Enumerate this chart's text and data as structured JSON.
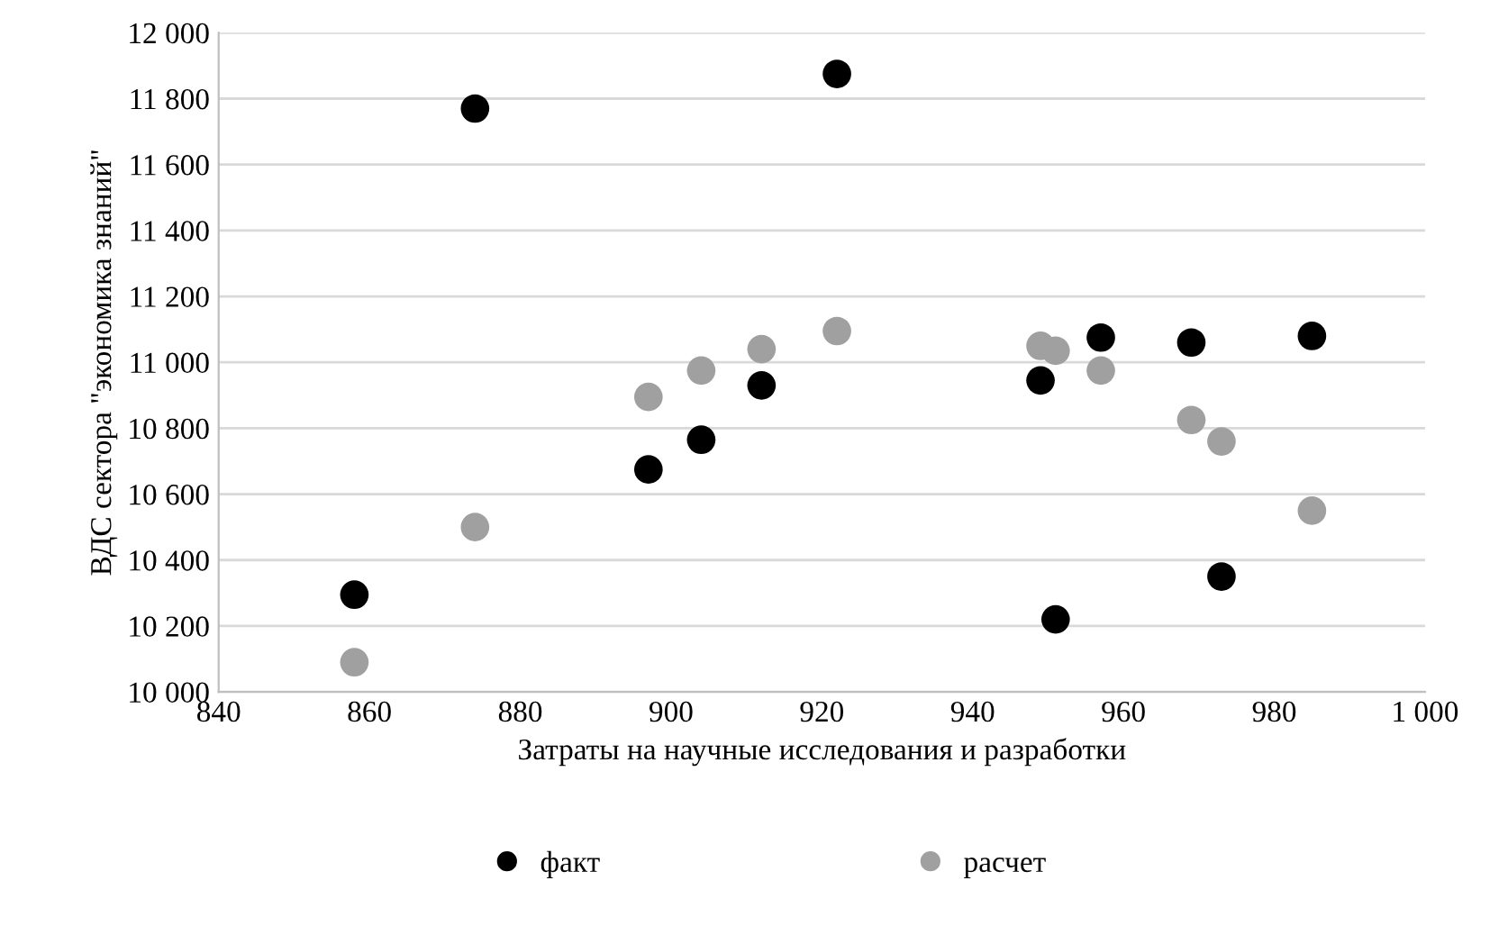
{
  "chart_data": {
    "type": "scatter",
    "xlabel": "Затраты на научные исследования и разработки",
    "ylabel": "ВДС сектора \"экономика знаний\"",
    "xlim": [
      840,
      1000
    ],
    "xticks": [
      840,
      860,
      880,
      900,
      920,
      940,
      960,
      980,
      {
        "value": 1000,
        "label": "1 000"
      }
    ],
    "ylim": [
      10000,
      12000
    ],
    "yticks": [
      {
        "value": 10000,
        "label": "10 000"
      },
      {
        "value": 10200,
        "label": "10 200"
      },
      {
        "value": 10400,
        "label": "10 400"
      },
      {
        "value": 10600,
        "label": "10 600"
      },
      {
        "value": 10800,
        "label": "10 800"
      },
      {
        "value": 11000,
        "label": "11 000"
      },
      {
        "value": 11200,
        "label": "11 200"
      },
      {
        "value": 11400,
        "label": "11 400"
      },
      {
        "value": 11600,
        "label": "11 600"
      },
      {
        "value": 11800,
        "label": "11 800"
      },
      {
        "value": 12000,
        "label": "12 000"
      }
    ],
    "grid": "y",
    "legend": "bottom",
    "marker": "circle",
    "series": [
      {
        "name": "факт",
        "color": "#000000",
        "x": [
          858,
          874,
          897,
          904,
          912,
          922,
          949,
          951,
          957,
          969,
          973,
          985
        ],
        "values": [
          10295,
          11770,
          10675,
          10765,
          10930,
          11875,
          10945,
          10220,
          11075,
          11060,
          10350,
          11080
        ]
      },
      {
        "name": "расчет",
        "color": "#a0a0a0",
        "x": [
          858,
          874,
          897,
          904,
          912,
          922,
          949,
          951,
          957,
          969,
          973,
          985
        ],
        "values": [
          10090,
          10500,
          10895,
          10975,
          11040,
          11095,
          11050,
          11035,
          10975,
          10825,
          10760,
          10550
        ]
      }
    ]
  }
}
